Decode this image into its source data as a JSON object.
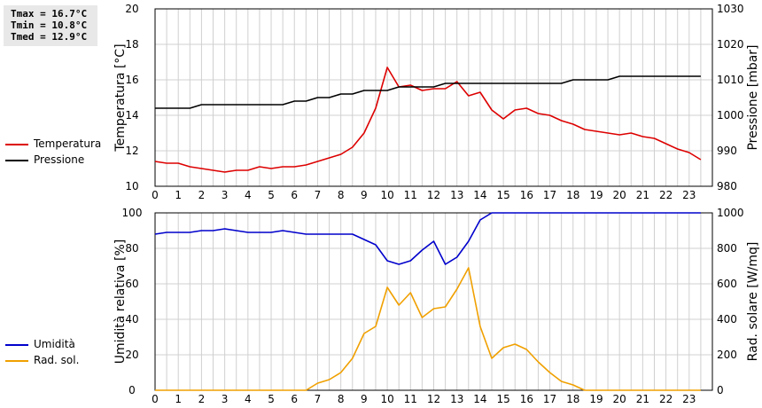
{
  "stats": [
    "Tmax = 16.7°C",
    "Tmin = 10.8°C",
    "Tmed = 12.9°C"
  ],
  "chart_data": [
    {
      "type": "line",
      "grid": true,
      "x": [
        0,
        0.5,
        1,
        1.5,
        2,
        2.5,
        3,
        3.5,
        4,
        4.5,
        5,
        5.5,
        6,
        6.5,
        7,
        7.5,
        8,
        8.5,
        9,
        9.5,
        10,
        10.5,
        11,
        11.5,
        12,
        12.5,
        13,
        13.5,
        14,
        14.5,
        15,
        15.5,
        16,
        16.5,
        17,
        17.5,
        18,
        18.5,
        19,
        19.5,
        20,
        20.5,
        21,
        21.5,
        22,
        22.5,
        23,
        23.5
      ],
      "xlim": [
        0,
        24
      ],
      "xticks": [
        "0",
        "1",
        "2",
        "3",
        "4",
        "5",
        "6",
        "7",
        "8",
        "9",
        "10",
        "11",
        "12",
        "13",
        "14",
        "15",
        "16",
        "17",
        "18",
        "19",
        "20",
        "21",
        "22",
        "23"
      ],
      "ylabel": "Temperatura [°C]",
      "ylim": [
        10,
        20
      ],
      "yticks": [
        "10",
        "12",
        "14",
        "16",
        "18",
        "20"
      ],
      "y2label": "Pressione [mbar]",
      "y2lim": [
        980,
        1030
      ],
      "y2ticks": [
        "980",
        "990",
        "1000",
        "1010",
        "1020",
        "1030"
      ],
      "series": [
        {
          "name": "Temperatura",
          "axis": "left",
          "color": "#dd0000",
          "values": [
            11.4,
            11.3,
            11.3,
            11.1,
            11.0,
            10.9,
            10.8,
            10.9,
            10.9,
            11.1,
            11.0,
            11.1,
            11.1,
            11.2,
            11.4,
            11.6,
            11.8,
            12.2,
            13.0,
            14.4,
            16.7,
            15.6,
            15.7,
            15.4,
            15.5,
            15.5,
            15.9,
            15.1,
            15.3,
            14.3,
            13.8,
            14.3,
            14.4,
            14.1,
            14.0,
            13.7,
            13.5,
            13.2,
            13.1,
            13.0,
            12.9,
            13.0,
            12.8,
            12.7,
            12.4,
            12.1,
            11.9,
            11.5
          ]
        },
        {
          "name": "Pressione",
          "axis": "right",
          "color": "#000000",
          "values": [
            1002,
            1002,
            1002,
            1002,
            1003,
            1003,
            1003,
            1003,
            1003,
            1003,
            1003,
            1003,
            1004,
            1004,
            1005,
            1005,
            1006,
            1006,
            1007,
            1007,
            1007,
            1008,
            1008,
            1008,
            1008,
            1009,
            1009,
            1009,
            1009,
            1009,
            1009,
            1009,
            1009,
            1009,
            1009,
            1009,
            1010,
            1010,
            1010,
            1010,
            1011,
            1011,
            1011,
            1011,
            1011,
            1011,
            1011,
            1011
          ]
        }
      ]
    },
    {
      "type": "line",
      "grid": true,
      "x": [
        0,
        0.5,
        1,
        1.5,
        2,
        2.5,
        3,
        3.5,
        4,
        4.5,
        5,
        5.5,
        6,
        6.5,
        7,
        7.5,
        8,
        8.5,
        9,
        9.5,
        10,
        10.5,
        11,
        11.5,
        12,
        12.5,
        13,
        13.5,
        14,
        14.5,
        15,
        15.5,
        16,
        16.5,
        17,
        17.5,
        18,
        18.5,
        19,
        19.5,
        20,
        20.5,
        21,
        21.5,
        22,
        22.5,
        23,
        23.5
      ],
      "xlim": [
        0,
        24
      ],
      "xticks": [
        "0",
        "1",
        "2",
        "3",
        "4",
        "5",
        "6",
        "7",
        "8",
        "9",
        "10",
        "11",
        "12",
        "13",
        "14",
        "15",
        "16",
        "17",
        "18",
        "19",
        "20",
        "21",
        "22",
        "23"
      ],
      "ylabel": "Umidità relativa [%]",
      "ylim": [
        0,
        100
      ],
      "yticks": [
        "0",
        "20",
        "40",
        "60",
        "80",
        "100"
      ],
      "y2label": "Rad. solare [W/mq]",
      "y2lim": [
        0,
        1000
      ],
      "y2ticks": [
        "0",
        "200",
        "400",
        "600",
        "800",
        "1000"
      ],
      "series": [
        {
          "name": "Umidità",
          "axis": "left",
          "color": "#0000cc",
          "values": [
            88,
            89,
            89,
            89,
            90,
            90,
            91,
            90,
            89,
            89,
            89,
            90,
            89,
            88,
            88,
            88,
            88,
            88,
            85,
            82,
            73,
            71,
            73,
            79,
            84,
            71,
            75,
            84,
            96,
            100,
            100,
            100,
            100,
            100,
            100,
            100,
            100,
            100,
            100,
            100,
            100,
            100,
            100,
            100,
            100,
            100,
            100,
            100
          ]
        },
        {
          "name": "Rad. sol.",
          "axis": "right",
          "color": "#f0a000",
          "values": [
            0,
            0,
            0,
            0,
            0,
            0,
            0,
            0,
            0,
            0,
            0,
            0,
            0,
            0,
            40,
            60,
            100,
            180,
            320,
            360,
            580,
            480,
            550,
            410,
            460,
            470,
            570,
            690,
            360,
            180,
            240,
            260,
            230,
            160,
            100,
            50,
            30,
            0,
            0,
            0,
            0,
            0,
            0,
            0,
            0,
            0,
            0,
            0
          ]
        }
      ]
    }
  ]
}
